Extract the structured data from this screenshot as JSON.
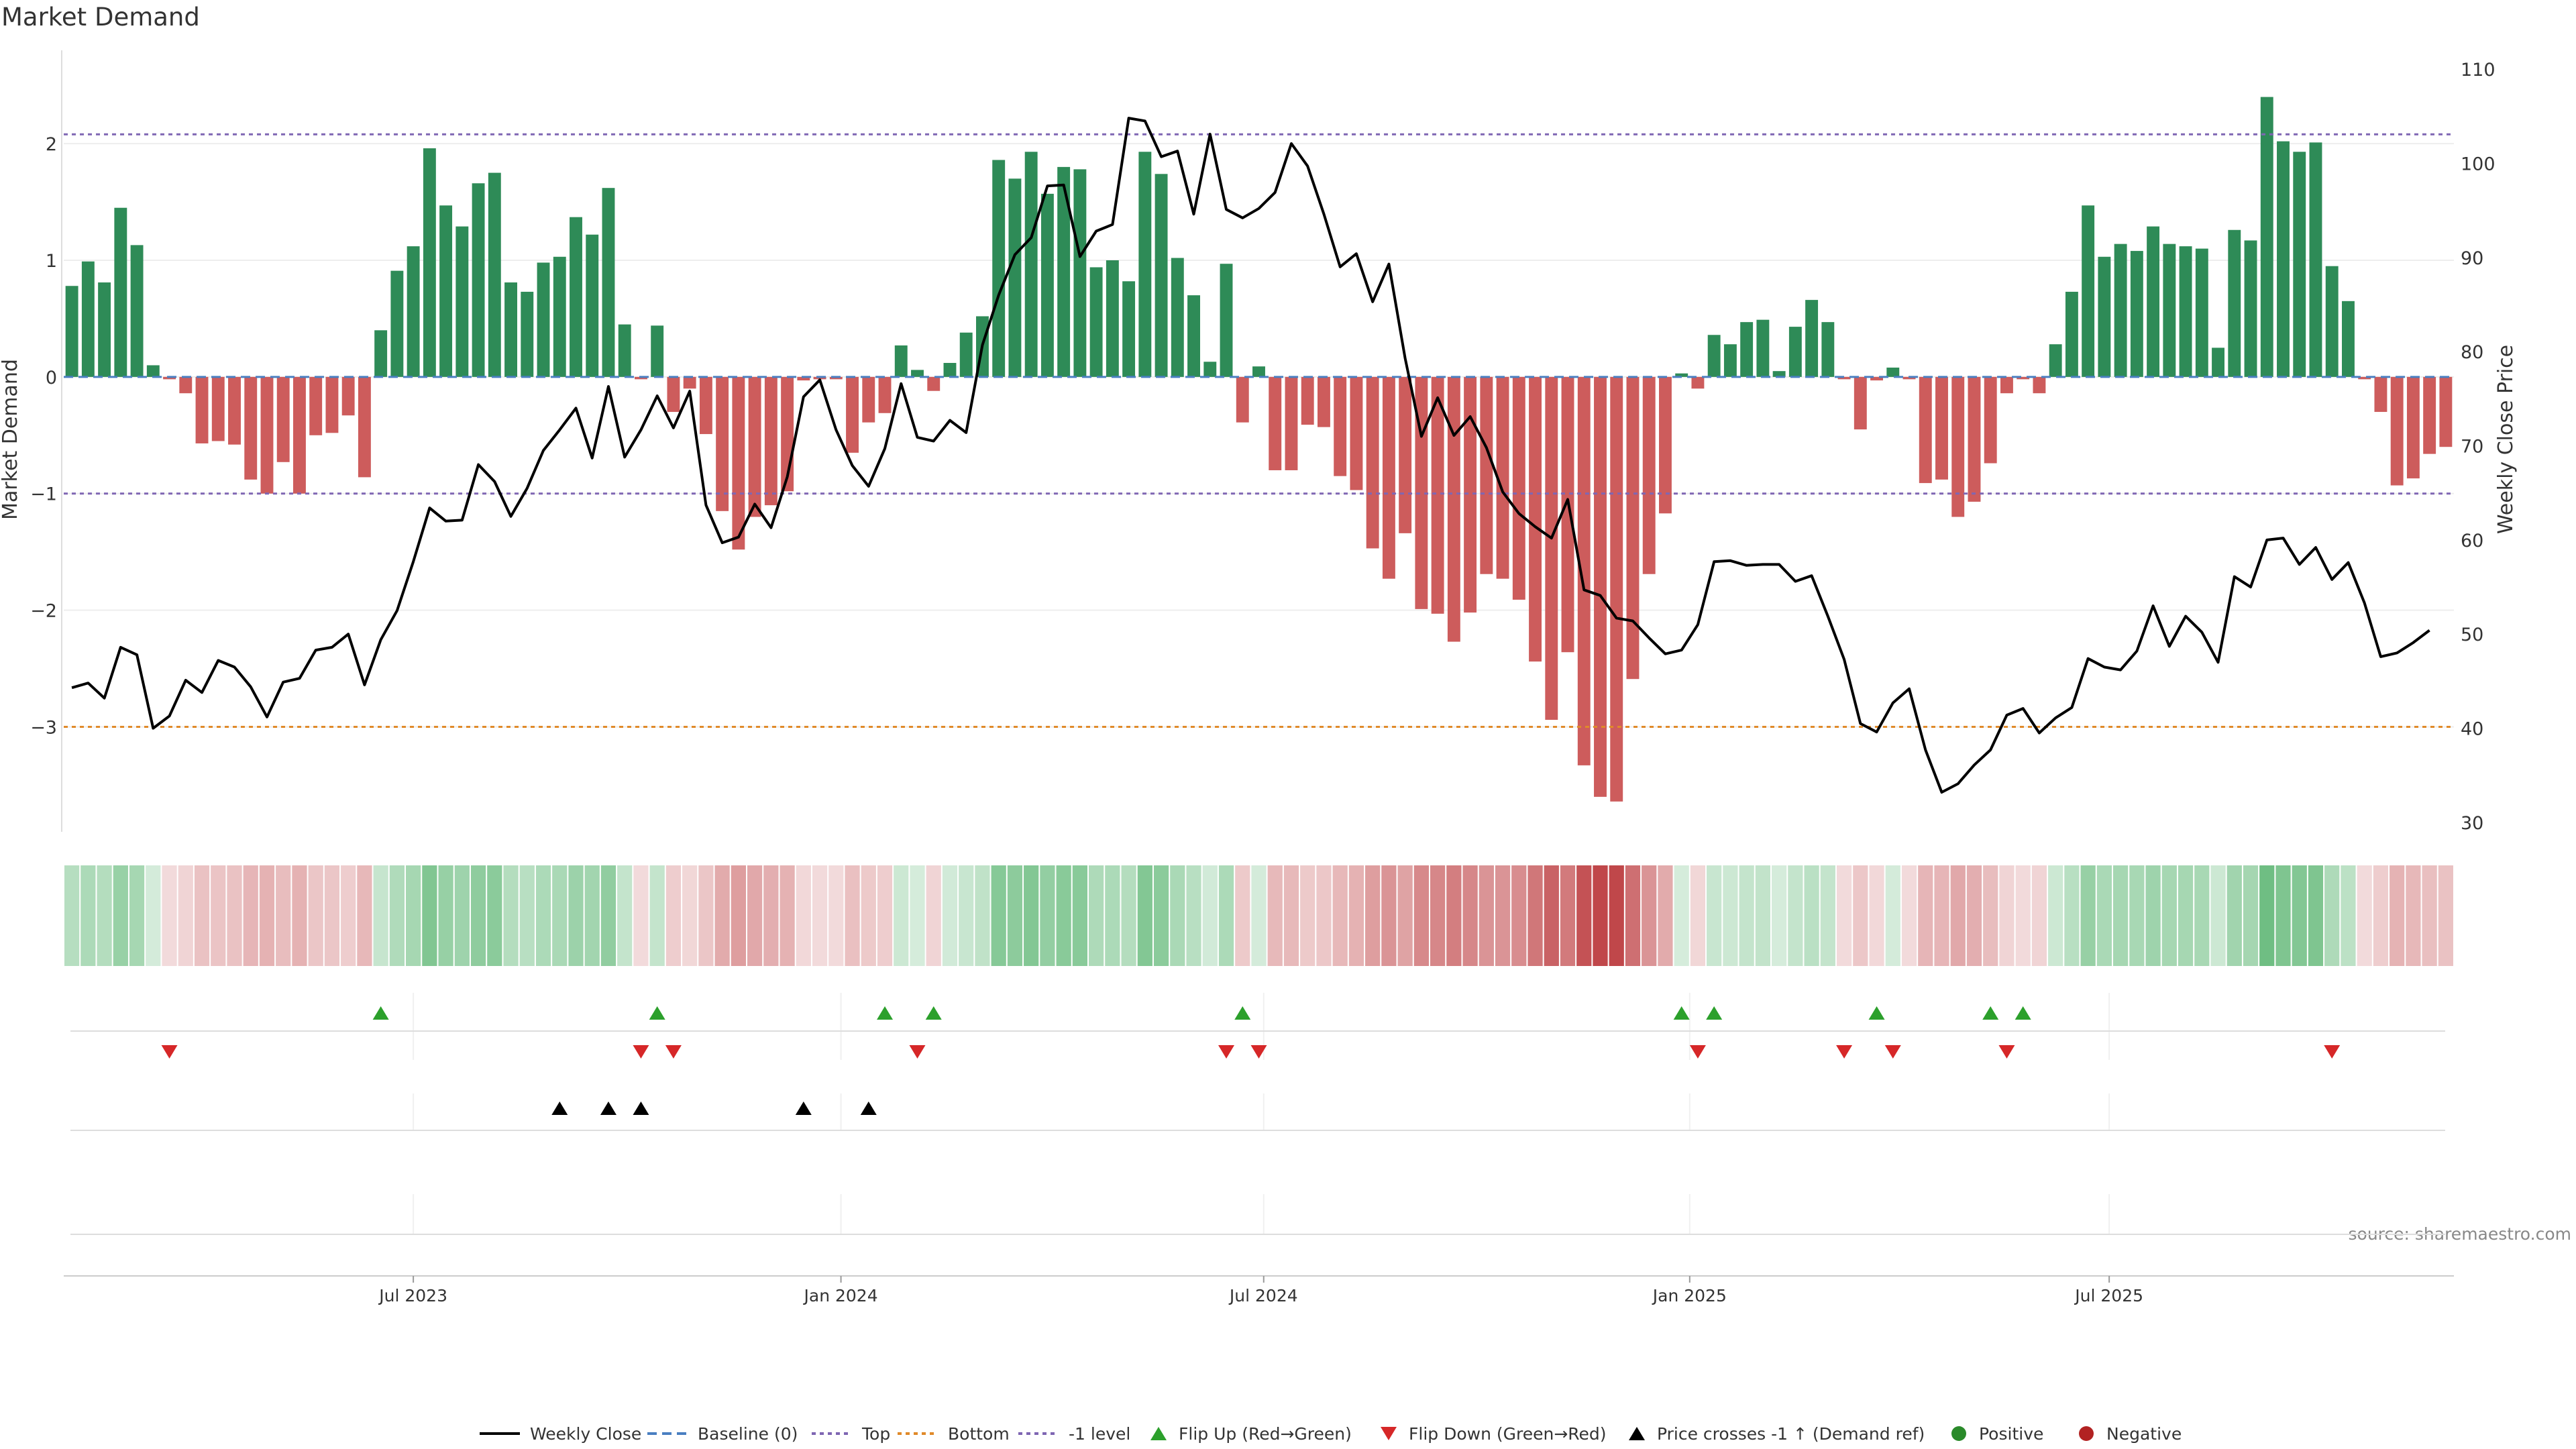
{
  "chart_data": {
    "type": "bar",
    "title": "Market Demand",
    "ylabel": "Market Demand",
    "y2label": "Weekly Close Price",
    "source": "source: sharemaestro.com",
    "ylim": [
      -3.9,
      2.8
    ],
    "y2lim": [
      29,
      112
    ],
    "y_ticks": [
      2,
      1,
      0,
      -1,
      -2,
      -3
    ],
    "y_tick_labels": [
      "2",
      "1",
      "0",
      "−1",
      "−2",
      "−3"
    ],
    "y2_ticks": [
      110,
      100,
      90,
      80,
      70,
      60,
      50,
      40,
      30
    ],
    "x_tick_labels": [
      "Jul 2023",
      "Jan 2024",
      "Jul 2024",
      "Jan 2025",
      "Jul 2025"
    ],
    "x_tick_index": [
      21.5,
      47.8,
      73.8,
      100,
      125.8
    ],
    "levels": {
      "top": 2.08,
      "bottom": -3.0,
      "minus_one": -1.0,
      "baseline": 0
    },
    "colors": {
      "positive": "#2e8b57",
      "negative": "#cd5c5c",
      "price": "#000000",
      "top_line": "#7f66b3",
      "bottom_line": "#e08a2a",
      "flip_up": "#2ca02c",
      "flip_down": "#d62728",
      "cross_marker": "#000000"
    },
    "demand": [
      0.78,
      0.99,
      0.81,
      1.45,
      1.13,
      0.1,
      -0.02,
      -0.14,
      -0.57,
      -0.55,
      -0.58,
      -0.88,
      -1.0,
      -0.73,
      -1.0,
      -0.5,
      -0.48,
      -0.33,
      -0.86,
      0.4,
      0.91,
      1.12,
      1.96,
      1.47,
      1.29,
      1.66,
      1.75,
      0.81,
      0.73,
      0.98,
      1.03,
      1.37,
      1.22,
      1.62,
      0.45,
      -0.02,
      0.44,
      -0.3,
      -0.1,
      -0.49,
      -1.15,
      -1.48,
      -1.2,
      -1.1,
      -0.98,
      -0.03,
      -0.02,
      -0.02,
      -0.65,
      -0.39,
      -0.31,
      0.27,
      0.06,
      -0.12,
      0.12,
      0.38,
      0.52,
      1.86,
      1.7,
      1.93,
      1.57,
      1.8,
      1.78,
      0.94,
      1.0,
      0.82,
      1.93,
      1.74,
      1.02,
      0.7,
      0.13,
      0.97,
      -0.39,
      0.09,
      -0.8,
      -0.8,
      -0.41,
      -0.43,
      -0.85,
      -0.97,
      -1.47,
      -1.73,
      -1.34,
      -1.99,
      -2.03,
      -2.27,
      -2.02,
      -1.69,
      -1.73,
      -1.91,
      -2.44,
      -2.94,
      -2.36,
      -3.33,
      -3.6,
      -3.64,
      -2.59,
      -1.69,
      -1.17,
      0.03,
      -0.1,
      0.36,
      0.28,
      0.47,
      0.49,
      0.05,
      0.43,
      0.66,
      0.47,
      -0.02,
      -0.45,
      -0.03,
      0.08,
      -0.02,
      -0.91,
      -0.88,
      -1.2,
      -1.07,
      -0.74,
      -0.14,
      -0.02,
      -0.14,
      0.28,
      0.73,
      1.47,
      1.03,
      1.14,
      1.08,
      1.29,
      1.14,
      1.12,
      1.1,
      0.25,
      1.26,
      1.17,
      2.4,
      2.02,
      1.93,
      2.01,
      0.95,
      0.65,
      -0.02,
      -0.3,
      -0.93,
      -0.87,
      -0.66,
      -0.6
    ],
    "weekly_close": [
      44.3,
      44.8,
      43.2,
      48.6,
      47.8,
      40.0,
      41.3,
      45.1,
      43.8,
      47.2,
      46.5,
      44.4,
      41.2,
      44.9,
      45.3,
      48.3,
      48.6,
      50.0,
      44.6,
      49.4,
      52.5,
      57.7,
      63.4,
      62.0,
      62.1,
      68.0,
      66.2,
      62.5,
      65.5,
      69.5,
      71.7,
      74.0,
      68.7,
      76.3,
      68.8,
      71.7,
      75.3,
      71.9,
      75.8,
      63.7,
      59.7,
      60.3,
      63.8,
      61.3,
      66.7,
      75.2,
      77.0,
      71.7,
      67.9,
      65.7,
      69.7,
      76.6,
      70.9,
      70.5,
      72.7,
      71.4,
      80.7,
      86.0,
      90.3,
      92.1,
      97.6,
      97.7,
      90.1,
      92.8,
      93.5,
      104.8,
      104.5,
      100.7,
      101.3,
      94.6,
      103.1,
      95.1,
      94.2,
      95.2,
      96.9,
      102.1,
      99.7,
      94.6,
      89.0,
      90.4,
      85.3,
      89.3,
      79.3,
      71.0,
      75.1,
      71.1,
      73.1,
      69.8,
      65.1,
      62.8,
      61.4,
      60.2,
      64.3,
      54.7,
      54.1,
      51.7,
      51.4,
      49.6,
      47.9,
      48.3,
      51.0,
      57.7,
      57.8,
      57.3,
      57.4,
      57.4,
      55.6,
      56.2,
      51.9,
      47.3,
      40.5,
      39.6,
      42.7,
      44.2,
      37.7,
      33.2,
      34.1,
      36.1,
      37.7,
      41.4,
      42.1,
      39.5,
      41.1,
      42.2,
      47.4,
      46.5,
      46.2,
      48.2,
      53.0,
      48.7,
      51.9,
      50.2,
      47.0,
      56.1,
      55.0,
      60.0,
      60.2,
      57.4,
      59.2,
      55.8,
      57.6,
      53.3,
      47.6,
      48.0,
      49.1,
      50.4
    ],
    "flip_up_index": [
      19,
      36,
      50,
      53,
      72,
      99,
      101,
      111,
      118,
      120
    ],
    "flip_down_index": [
      6,
      35,
      37,
      52,
      71,
      73,
      100,
      109,
      112,
      119,
      139
    ],
    "price_cross_index": [
      30,
      33,
      35,
      45,
      49
    ],
    "legend": [
      "Weekly Close",
      "Baseline (0)",
      "Top",
      "Bottom",
      "-1 level",
      "Flip Up (Red→Green)",
      "Flip Down (Green→Red)",
      "Price crosses -1 ↑ (Demand ref)",
      "Positive",
      "Negative"
    ]
  }
}
